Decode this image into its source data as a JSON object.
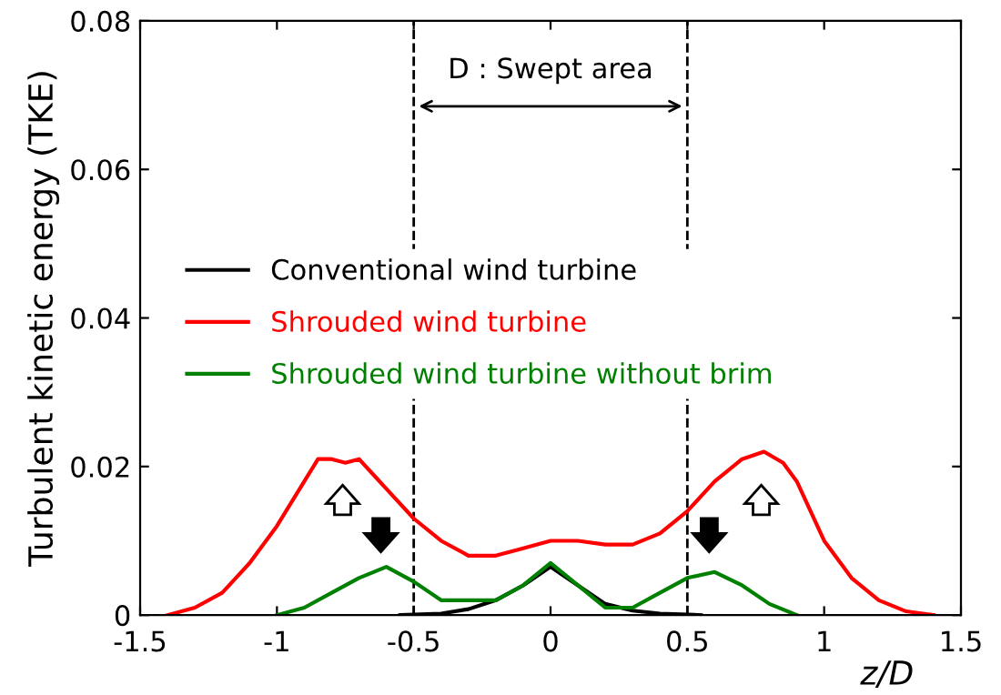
{
  "chart_data": {
    "type": "line",
    "xlabel": "z/D",
    "ylabel": "Turbulent kinetic energy (TKE)",
    "xlim": [
      -1.5,
      1.5
    ],
    "ylim": [
      0,
      0.08
    ],
    "xticks": [
      -1.5,
      -1,
      -0.5,
      0,
      0.5,
      1,
      1.5
    ],
    "yticks": [
      0,
      0.02,
      0.04,
      0.06,
      0.08
    ],
    "grid": false,
    "legend": "left",
    "marker": "none",
    "line_style": "solid",
    "ref_lines": [
      {
        "axis": "x",
        "value": -0.5,
        "color": "#000000",
        "line_style": "dashed"
      },
      {
        "axis": "x",
        "value": 0.5,
        "color": "#000000",
        "line_style": "dashed"
      }
    ],
    "annotations": [
      "D : Swept area"
    ],
    "series": [
      {
        "name": "Conventional wind turbine",
        "color": "#000000",
        "x": [
          -0.55,
          -0.4,
          -0.3,
          -0.2,
          -0.1,
          0,
          0.1,
          0.2,
          0.3,
          0.4,
          0.55
        ],
        "values": [
          0,
          0.0002,
          0.0008,
          0.002,
          0.004,
          0.0065,
          0.004,
          0.0015,
          0.0006,
          0.0002,
          0
        ]
      },
      {
        "name": "Shrouded wind turbine",
        "color": "#ff0000",
        "x": [
          -1.4,
          -1.3,
          -1.2,
          -1.1,
          -1.0,
          -0.9,
          -0.85,
          -0.8,
          -0.75,
          -0.7,
          -0.65,
          -0.6,
          -0.5,
          -0.4,
          -0.3,
          -0.2,
          -0.1,
          0,
          0.1,
          0.2,
          0.3,
          0.4,
          0.5,
          0.6,
          0.7,
          0.78,
          0.85,
          0.9,
          1.0,
          1.1,
          1.2,
          1.3,
          1.4
        ],
        "values": [
          0,
          0.001,
          0.003,
          0.007,
          0.012,
          0.018,
          0.021,
          0.021,
          0.0205,
          0.021,
          0.019,
          0.017,
          0.013,
          0.01,
          0.008,
          0.008,
          0.009,
          0.01,
          0.01,
          0.0095,
          0.0095,
          0.011,
          0.014,
          0.018,
          0.021,
          0.022,
          0.0205,
          0.018,
          0.01,
          0.005,
          0.002,
          0.0005,
          0
        ]
      },
      {
        "name": "Shrouded wind turbine without brim",
        "color": "#008000",
        "x": [
          -1.0,
          -0.9,
          -0.8,
          -0.7,
          -0.6,
          -0.5,
          -0.4,
          -0.3,
          -0.2,
          -0.1,
          0,
          0.1,
          0.2,
          0.3,
          0.4,
          0.5,
          0.6,
          0.7,
          0.8,
          0.9
        ],
        "values": [
          0,
          0.001,
          0.003,
          0.005,
          0.0065,
          0.0045,
          0.002,
          0.002,
          0.002,
          0.004,
          0.007,
          0.004,
          0.001,
          0.001,
          0.003,
          0.005,
          0.0058,
          0.004,
          0.0015,
          0
        ]
      }
    ]
  }
}
